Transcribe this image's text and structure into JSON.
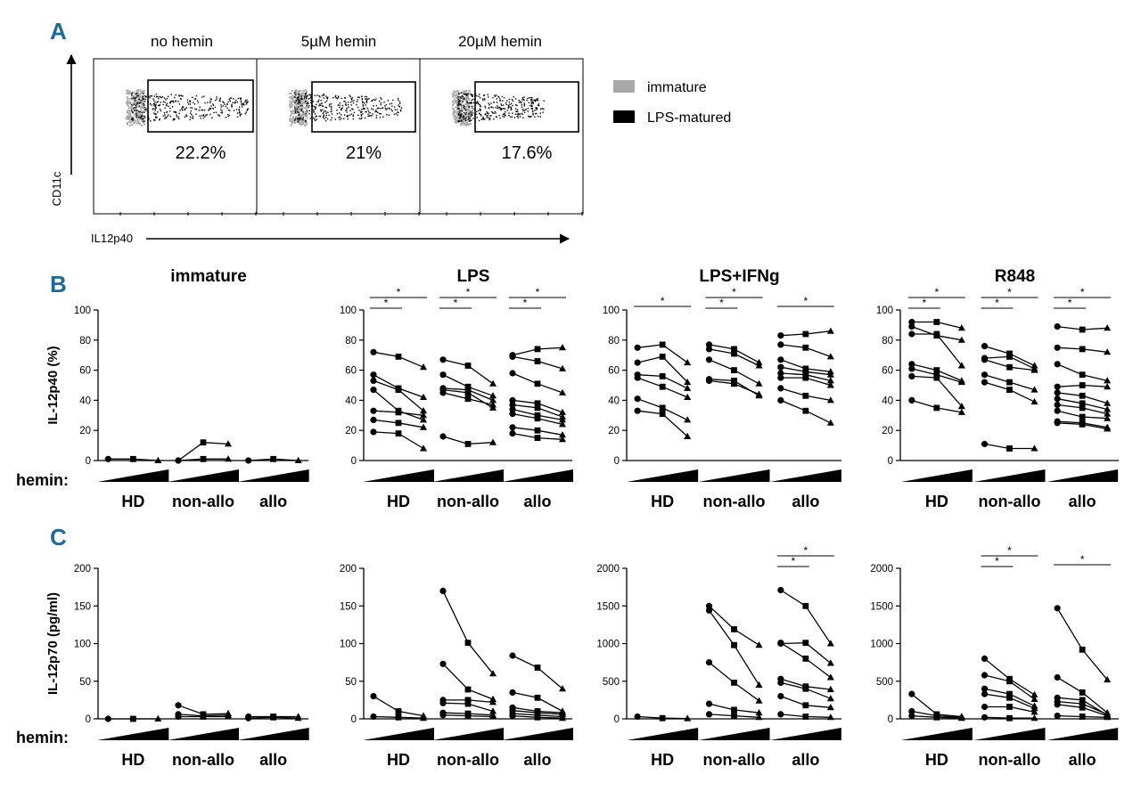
{
  "colors": {
    "panel_label": "#1b6a9c",
    "ink": "#000000",
    "immature_gray": "#a8a8a8"
  },
  "panel_labels": {
    "a": "A",
    "b": "B",
    "c": "C"
  },
  "flow": {
    "titles": [
      "no hemin",
      "5µM hemin",
      "20µM hemin"
    ],
    "percents": [
      "22.2%",
      "21%",
      "17.6%"
    ],
    "y_axis_label": "CD11c",
    "x_axis_label": "IL12p40",
    "legend": {
      "immature": "immature",
      "lps": "LPS-matured"
    }
  },
  "chart_data": [
    {
      "type": "line",
      "id": "B-immature",
      "title": "immature",
      "ylabel": "IL-12p40 (%)",
      "ylim": [
        0,
        100
      ],
      "yticks": [
        "0",
        "20",
        "40",
        "60",
        "80",
        "100"
      ],
      "groups": [
        {
          "name": "HD",
          "values": [
            [
              1,
              1,
              0
            ]
          ]
        },
        {
          "name": "non-allo",
          "values": [
            [
              0,
              12,
              11
            ],
            [
              0,
              1,
              1
            ]
          ]
        },
        {
          "name": "allo",
          "values": [
            [
              0,
              1,
              0
            ]
          ]
        }
      ]
    },
    {
      "type": "line",
      "id": "B-LPS",
      "title": "LPS",
      "ylim": [
        0,
        100
      ],
      "yticks": [
        "0",
        "20",
        "40",
        "60",
        "80",
        "100"
      ],
      "groups": [
        {
          "name": "HD",
          "values": [
            [
              72,
              69,
              62
            ],
            [
              57,
              48,
              42
            ],
            [
              53,
              47,
              33
            ],
            [
              47,
              33,
              27
            ],
            [
              33,
              32,
              30
            ],
            [
              27,
              25,
              22
            ],
            [
              19,
              18,
              8
            ]
          ],
          "sig": [
            "*",
            "*"
          ]
        },
        {
          "name": "non-allo",
          "values": [
            [
              67,
              63,
              51
            ],
            [
              57,
              49,
              43
            ],
            [
              48,
              47,
              40
            ],
            [
              47,
              45,
              35
            ],
            [
              45,
              41,
              37
            ],
            [
              16,
              11,
              12
            ]
          ],
          "sig": [
            "*",
            "*"
          ]
        },
        {
          "name": "allo",
          "values": [
            [
              70,
              74,
              75
            ],
            [
              69,
              66,
              61
            ],
            [
              58,
              51,
              45
            ],
            [
              40,
              38,
              32
            ],
            [
              37,
              35,
              29
            ],
            [
              34,
              30,
              27
            ],
            [
              31,
              28,
              24
            ],
            [
              22,
              20,
              17
            ],
            [
              18,
              15,
              14
            ]
          ],
          "sig": [
            "*",
            "*"
          ]
        }
      ]
    },
    {
      "type": "line",
      "id": "B-LPS+IFNg",
      "title": "LPS+IFNg",
      "ylim": [
        0,
        100
      ],
      "yticks": [
        "0",
        "20",
        "40",
        "60",
        "80",
        "100"
      ],
      "groups": [
        {
          "name": "HD",
          "values": [
            [
              75,
              77,
              65
            ],
            [
              65,
              69,
              52
            ],
            [
              57,
              56,
              48
            ],
            [
              55,
              49,
              42
            ],
            [
              41,
              35,
              27
            ],
            [
              33,
              31,
              16
            ]
          ],
          "sig": [
            "*"
          ]
        },
        {
          "name": "non-allo",
          "values": [
            [
              77,
              74,
              65
            ],
            [
              74,
              71,
              63
            ],
            [
              67,
              60,
              51
            ],
            [
              54,
              53,
              43
            ],
            [
              53,
              51,
              44
            ]
          ],
          "sig": [
            "*",
            "*"
          ]
        },
        {
          "name": "allo",
          "values": [
            [
              83,
              84,
              86
            ],
            [
              77,
              75,
              69
            ],
            [
              67,
              61,
              59
            ],
            [
              62,
              59,
              57
            ],
            [
              58,
              57,
              53
            ],
            [
              55,
              55,
              50
            ],
            [
              48,
              43,
              40
            ],
            [
              40,
              33,
              25
            ]
          ],
          "sig": [
            "*"
          ]
        }
      ]
    },
    {
      "type": "line",
      "id": "B-R848",
      "title": "R848",
      "ylim": [
        0,
        100
      ],
      "yticks": [
        "0",
        "20",
        "40",
        "60",
        "80",
        "100"
      ],
      "groups": [
        {
          "name": "HD",
          "values": [
            [
              92,
              92,
              88
            ],
            [
              89,
              83,
              80
            ],
            [
              84,
              84,
              63
            ],
            [
              64,
              60,
              53
            ],
            [
              61,
              57,
              52
            ],
            [
              56,
              55,
              36
            ],
            [
              40,
              35,
              32
            ]
          ],
          "sig": [
            "*",
            "*"
          ]
        },
        {
          "name": "non-allo",
          "values": [
            [
              76,
              71,
              63
            ],
            [
              68,
              69,
              61
            ],
            [
              67,
              62,
              60
            ],
            [
              57,
              52,
              47
            ],
            [
              52,
              47,
              39
            ],
            [
              11,
              8,
              8
            ]
          ],
          "sig": [
            "*",
            "*"
          ]
        },
        {
          "name": "allo",
          "values": [
            [
              89,
              87,
              88
            ],
            [
              75,
              74,
              72
            ],
            [
              64,
              57,
              53
            ],
            [
              49,
              50,
              49
            ],
            [
              45,
              43,
              38
            ],
            [
              41,
              38,
              34
            ],
            [
              37,
              35,
              31
            ],
            [
              33,
              29,
              28
            ],
            [
              26,
              25,
              22
            ],
            [
              25,
              24,
              21
            ]
          ],
          "sig": [
            "*",
            "*"
          ]
        }
      ]
    },
    {
      "type": "line",
      "id": "C-immature",
      "ylabel": "IL-12p70 (pg/ml)",
      "ylim": [
        0,
        200
      ],
      "yticks": [
        "0",
        "50",
        "100",
        "150",
        "200"
      ],
      "groups": [
        {
          "name": "HD",
          "values": [
            [
              0,
              0,
              0
            ]
          ]
        },
        {
          "name": "non-allo",
          "values": [
            [
              18,
              6,
              7
            ],
            [
              6,
              4,
              5
            ],
            [
              3,
              3,
              3
            ]
          ]
        },
        {
          "name": "allo",
          "values": [
            [
              3,
              3,
              3
            ],
            [
              1,
              2,
              1
            ]
          ]
        }
      ]
    },
    {
      "type": "line",
      "id": "C-LPS",
      "ylim": [
        0,
        200
      ],
      "yticks": [
        "0",
        "50",
        "100",
        "150",
        "200"
      ],
      "groups": [
        {
          "name": "HD",
          "values": [
            [
              30,
              10,
              4
            ],
            [
              3,
              2,
              1
            ]
          ]
        },
        {
          "name": "non-allo",
          "values": [
            [
              170,
              101,
              60
            ],
            [
              73,
              39,
              26
            ],
            [
              25,
              25,
              22
            ],
            [
              21,
              20,
              10
            ],
            [
              8,
              7,
              5
            ],
            [
              5,
              4,
              3
            ]
          ]
        },
        {
          "name": "allo",
          "values": [
            [
              84,
              68,
              40
            ],
            [
              35,
              28,
              10
            ],
            [
              15,
              10,
              8
            ],
            [
              11,
              8,
              6
            ],
            [
              7,
              5,
              3
            ],
            [
              4,
              2,
              1
            ]
          ]
        }
      ]
    },
    {
      "type": "line",
      "id": "C-LPS+IFNg",
      "ylim": [
        0,
        2000
      ],
      "yticks": [
        "0",
        "500",
        "1000",
        "1500",
        "2000"
      ],
      "groups": [
        {
          "name": "HD",
          "values": [
            [
              30,
              10,
              5
            ]
          ]
        },
        {
          "name": "non-allo",
          "values": [
            [
              1500,
              1190,
              980
            ],
            [
              1440,
              980,
              450
            ],
            [
              750,
              480,
              240
            ],
            [
              200,
              120,
              80
            ],
            [
              60,
              40,
              20
            ]
          ]
        },
        {
          "name": "allo",
          "values": [
            [
              1710,
              1500,
              1000
            ],
            [
              1000,
              1010,
              740
            ],
            [
              1010,
              800,
              550
            ],
            [
              530,
              430,
              390
            ],
            [
              480,
              400,
              270
            ],
            [
              300,
              180,
              150
            ],
            [
              60,
              30,
              20
            ]
          ],
          "sig": [
            "*",
            "*"
          ]
        }
      ]
    },
    {
      "type": "line",
      "id": "C-R848",
      "ylim": [
        0,
        2000
      ],
      "yticks": [
        "0",
        "500",
        "1000",
        "1500",
        "2000"
      ],
      "groups": [
        {
          "name": "HD",
          "values": [
            [
              330,
              60,
              30
            ],
            [
              100,
              40,
              20
            ],
            [
              40,
              20,
              10
            ]
          ]
        },
        {
          "name": "non-allo",
          "values": [
            [
              800,
              530,
              320
            ],
            [
              580,
              500,
              260
            ],
            [
              400,
              330,
              170
            ],
            [
              330,
              280,
              140
            ],
            [
              160,
              160,
              90
            ],
            [
              20,
              10,
              10
            ]
          ],
          "sig": [
            "*",
            "*"
          ]
        },
        {
          "name": "allo",
          "values": [
            [
              1470,
              920,
              520
            ],
            [
              550,
              350,
              80
            ],
            [
              280,
              250,
              50
            ],
            [
              230,
              200,
              60
            ],
            [
              190,
              150,
              40
            ],
            [
              40,
              30,
              20
            ]
          ],
          "sig": [
            "*"
          ]
        }
      ]
    }
  ],
  "hemin_label": "hemin:"
}
